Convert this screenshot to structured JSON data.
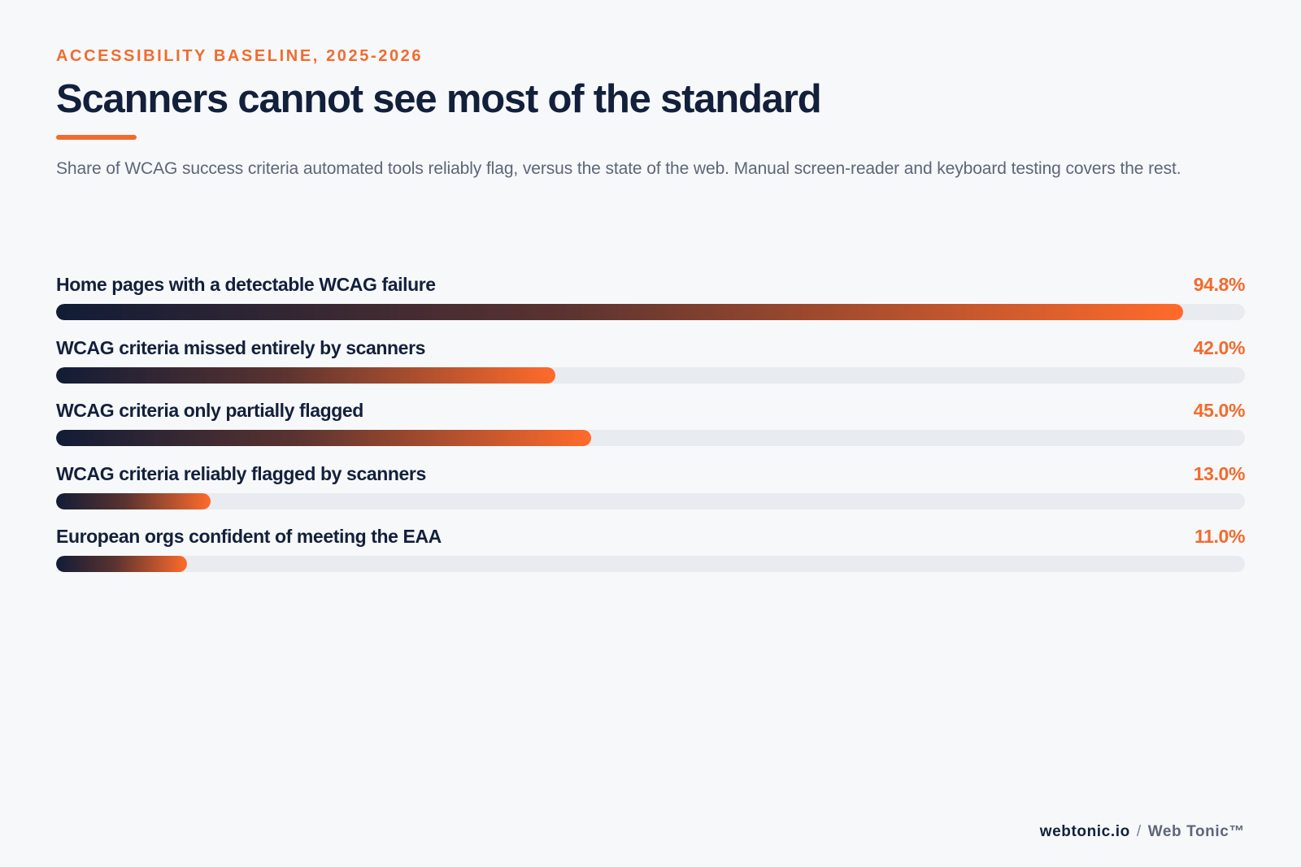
{
  "header": {
    "eyebrow": "ACCESSIBILITY BASELINE, 2025-2026",
    "title": "Scanners cannot see most of the standard",
    "subtitle": "Share of WCAG success criteria automated tools reliably flag, versus the state of the web. Manual screen-reader and keyboard testing covers the rest."
  },
  "colors": {
    "accent": "#f26b2e",
    "navy": "#13203b",
    "track": "#e8ebef",
    "background": "#f7f8fa"
  },
  "chart_data": {
    "type": "bar",
    "orientation": "horizontal",
    "unit": "%",
    "xlim": [
      0,
      100
    ],
    "grid": false,
    "categories": [
      "Home pages with a detectable WCAG failure",
      "WCAG criteria missed entirely by scanners",
      "WCAG criteria only partially flagged",
      "WCAG criteria reliably flagged by scanners",
      "European orgs confident of meeting the EAA"
    ],
    "values": [
      94.8,
      42.0,
      45.0,
      13.0,
      11.0
    ],
    "value_labels": [
      "94.8%",
      "42.0%",
      "45.0%",
      "13.0%",
      "11.0%"
    ]
  },
  "footer": {
    "brand": "webtonic.io",
    "separator": "/",
    "product": "Web Tonic™"
  }
}
